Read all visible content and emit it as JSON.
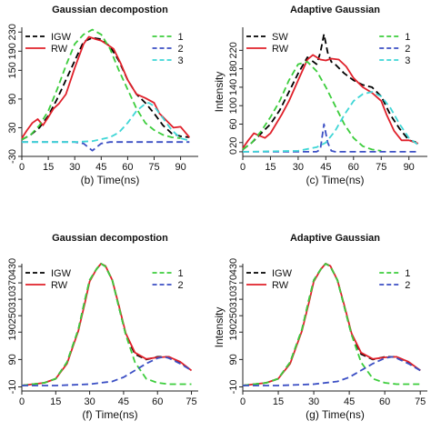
{
  "chart_data": [
    {
      "type": "line",
      "title": "Gaussian decompostion",
      "xlabel": "(b) Time(ns)",
      "ylabel": "",
      "xlim": [
        0,
        100
      ],
      "ylim": [
        -30,
        240
      ],
      "xticks": [
        0,
        15,
        30,
        45,
        60,
        75,
        90
      ],
      "yticks": [
        -30,
        30,
        90,
        150,
        190,
        230
      ],
      "series": [
        {
          "name": "IGW",
          "color": "#000000",
          "dash": "dashed",
          "x": [
            0,
            5,
            10,
            15,
            20,
            25,
            30,
            35,
            40,
            45,
            50,
            55,
            60,
            65,
            70,
            75,
            80,
            85,
            90,
            95
          ],
          "y": [
            5,
            15,
            30,
            55,
            90,
            130,
            170,
            210,
            218,
            215,
            200,
            170,
            130,
            100,
            82,
            60,
            35,
            18,
            12,
            10
          ]
        },
        {
          "name": "RW",
          "color": "#e0202a",
          "dash": "solid",
          "x": [
            0,
            3,
            6,
            9,
            12,
            15,
            18,
            21,
            25,
            30,
            35,
            38,
            42,
            45,
            48,
            52,
            56,
            60,
            65,
            70,
            75,
            78,
            82,
            86,
            90,
            95
          ],
          "y": [
            8,
            25,
            40,
            48,
            35,
            52,
            70,
            80,
            100,
            155,
            205,
            220,
            215,
            212,
            205,
            195,
            165,
            130,
            100,
            92,
            82,
            60,
            45,
            30,
            32,
            10
          ]
        },
        {
          "name": "1",
          "color": "#3ccd3c",
          "dash": "dashed",
          "x": [
            0,
            5,
            10,
            15,
            20,
            25,
            30,
            35,
            40,
            45,
            50,
            55,
            60,
            65,
            70,
            75,
            80,
            85,
            90
          ],
          "y": [
            5,
            15,
            35,
            65,
            110,
            160,
            205,
            225,
            235,
            225,
            195,
            150,
            110,
            70,
            40,
            25,
            15,
            10,
            8
          ]
        },
        {
          "name": "2",
          "color": "#3b4fc4",
          "dash": "dashed",
          "x": [
            0,
            30,
            35,
            38,
            40,
            42,
            45,
            50,
            55,
            95
          ],
          "y": [
            0,
            0,
            -3,
            -12,
            -18,
            -12,
            -3,
            0,
            0,
            0
          ]
        },
        {
          "name": "3",
          "color": "#3fd6d6",
          "dash": "dashed",
          "x": [
            0,
            30,
            40,
            50,
            55,
            60,
            65,
            70,
            72,
            75,
            80,
            85,
            90,
            95
          ],
          "y": [
            0,
            0,
            2,
            10,
            20,
            40,
            65,
            80,
            82,
            75,
            50,
            25,
            8,
            3
          ]
        }
      ]
    },
    {
      "type": "line",
      "title": "Adaptive Gaussian",
      "xlabel": "(c) Time(ns)",
      "ylabel": "Intensity",
      "xlim": [
        0,
        100
      ],
      "ylim": [
        -10,
        270
      ],
      "xticks": [
        0,
        15,
        30,
        45,
        60,
        75,
        90
      ],
      "yticks": [
        0,
        20,
        60,
        100,
        140,
        180,
        220
      ],
      "series": [
        {
          "name": "SW",
          "color": "#000000",
          "dash": "dashed",
          "x": [
            0,
            5,
            10,
            15,
            20,
            25,
            30,
            35,
            40,
            42,
            44,
            46,
            48,
            50,
            55,
            60,
            65,
            70,
            75,
            80,
            85,
            90,
            95
          ],
          "y": [
            5,
            20,
            40,
            60,
            90,
            130,
            170,
            205,
            190,
            215,
            255,
            215,
            195,
            190,
            170,
            155,
            145,
            140,
            120,
            80,
            50,
            25,
            20
          ]
        },
        {
          "name": "RW",
          "color": "#e0202a",
          "dash": "solid",
          "x": [
            0,
            3,
            6,
            9,
            12,
            15,
            18,
            21,
            25,
            30,
            35,
            38,
            42,
            45,
            48,
            52,
            56,
            60,
            65,
            70,
            75,
            78,
            82,
            86,
            90,
            95
          ],
          "y": [
            8,
            25,
            40,
            35,
            30,
            40,
            60,
            80,
            110,
            155,
            200,
            210,
            200,
            198,
            202,
            200,
            185,
            160,
            140,
            128,
            110,
            80,
            45,
            25,
            25,
            18
          ]
        },
        {
          "name": "1",
          "color": "#3ccd3c",
          "dash": "dashed",
          "x": [
            0,
            5,
            10,
            15,
            20,
            25,
            30,
            35,
            40,
            45,
            50,
            55,
            60,
            65,
            70,
            75
          ],
          "y": [
            5,
            20,
            45,
            75,
            110,
            155,
            190,
            195,
            175,
            140,
            100,
            60,
            30,
            12,
            5,
            2
          ]
        },
        {
          "name": "2",
          "color": "#3b4fc4",
          "dash": "dashed",
          "x": [
            0,
            40,
            42,
            44,
            46,
            48,
            50,
            95
          ],
          "y": [
            0,
            0,
            5,
            60,
            20,
            2,
            0,
            0
          ]
        },
        {
          "name": "3",
          "color": "#3fd6d6",
          "dash": "dashed",
          "x": [
            0,
            30,
            40,
            45,
            50,
            55,
            60,
            65,
            70,
            75,
            80,
            85,
            90,
            95
          ],
          "y": [
            0,
            2,
            10,
            20,
            45,
            80,
            110,
            125,
            130,
            120,
            95,
            60,
            30,
            15
          ]
        }
      ]
    },
    {
      "type": "line",
      "title": "Gaussian decompostion",
      "xlabel": "(f) Time(ns)",
      "ylabel": "",
      "xlim": [
        0,
        78
      ],
      "ylim": [
        -25,
        440
      ],
      "xticks": [
        0,
        15,
        30,
        45,
        60,
        75
      ],
      "yticks": [
        -10,
        90,
        190,
        250,
        310,
        370,
        430
      ],
      "series": [
        {
          "name": "IGW",
          "color": "#000000",
          "dash": "dashed",
          "x": [
            0,
            5,
            10,
            15,
            20,
            25,
            28,
            30,
            33,
            35,
            37,
            40,
            43,
            46,
            50,
            55,
            60,
            65,
            70,
            75
          ],
          "y": [
            -5,
            0,
            5,
            20,
            80,
            200,
            310,
            380,
            420,
            440,
            430,
            380,
            280,
            180,
            110,
            90,
            100,
            100,
            80,
            50
          ]
        },
        {
          "name": "RW",
          "color": "#e0202a",
          "dash": "solid",
          "x": [
            0,
            5,
            10,
            15,
            20,
            25,
            28,
            30,
            33,
            35,
            37,
            40,
            43,
            46,
            50,
            55,
            60,
            65,
            70,
            75
          ],
          "y": [
            -5,
            0,
            5,
            20,
            75,
            195,
            300,
            375,
            420,
            440,
            432,
            380,
            285,
            185,
            115,
            92,
            98,
            100,
            82,
            50
          ]
        },
        {
          "name": "1",
          "color": "#3ccd3c",
          "dash": "dashed",
          "x": [
            0,
            10,
            15,
            20,
            25,
            28,
            30,
            33,
            35,
            37,
            40,
            43,
            46,
            50,
            55,
            60,
            65,
            70,
            75
          ],
          "y": [
            -5,
            5,
            20,
            80,
            200,
            310,
            380,
            420,
            440,
            430,
            380,
            280,
            180,
            80,
            20,
            5,
            0,
            0,
            0
          ]
        },
        {
          "name": "2",
          "color": "#3b4fc4",
          "dash": "dashed",
          "x": [
            0,
            15,
            30,
            40,
            45,
            50,
            55,
            60,
            63,
            65,
            70,
            75
          ],
          "y": [
            -5,
            -5,
            0,
            10,
            25,
            50,
            75,
            95,
            100,
            95,
            75,
            50
          ]
        }
      ]
    },
    {
      "type": "line",
      "title": "Adaptive Gaussian",
      "xlabel": "(g) Time(ns)",
      "ylabel": "Intensity",
      "xlim": [
        0,
        78
      ],
      "ylim": [
        -25,
        440
      ],
      "xticks": [
        0,
        15,
        30,
        45,
        60,
        75
      ],
      "yticks": [
        -10,
        90,
        190,
        250,
        310,
        370,
        430
      ],
      "series": [
        {
          "name": "IGW",
          "color": "#000000",
          "dash": "dashed",
          "x": [
            0,
            5,
            10,
            15,
            20,
            25,
            28,
            30,
            33,
            35,
            37,
            40,
            43,
            46,
            50,
            55,
            60,
            65,
            70,
            75
          ],
          "y": [
            -5,
            0,
            5,
            20,
            80,
            200,
            310,
            380,
            420,
            440,
            430,
            380,
            280,
            180,
            110,
            90,
            100,
            100,
            80,
            50
          ]
        },
        {
          "name": "RW",
          "color": "#e0202a",
          "dash": "solid",
          "x": [
            0,
            5,
            10,
            15,
            20,
            25,
            28,
            30,
            33,
            35,
            37,
            40,
            43,
            46,
            50,
            55,
            60,
            65,
            70,
            75
          ],
          "y": [
            -5,
            0,
            5,
            20,
            75,
            195,
            300,
            375,
            420,
            440,
            432,
            380,
            285,
            185,
            115,
            92,
            98,
            100,
            82,
            50
          ]
        },
        {
          "name": "1",
          "color": "#3ccd3c",
          "dash": "dashed",
          "x": [
            0,
            10,
            15,
            20,
            25,
            28,
            30,
            33,
            35,
            37,
            40,
            43,
            46,
            50,
            55,
            60,
            65,
            70,
            75
          ],
          "y": [
            -5,
            5,
            20,
            80,
            200,
            310,
            380,
            420,
            440,
            430,
            380,
            280,
            180,
            80,
            20,
            5,
            0,
            0,
            0
          ]
        },
        {
          "name": "2",
          "color": "#3b4fc4",
          "dash": "dashed",
          "x": [
            0,
            15,
            30,
            40,
            45,
            50,
            55,
            60,
            63,
            65,
            70,
            75
          ],
          "y": [
            -5,
            -5,
            0,
            10,
            25,
            50,
            75,
            95,
            100,
            95,
            75,
            50
          ]
        }
      ]
    }
  ]
}
